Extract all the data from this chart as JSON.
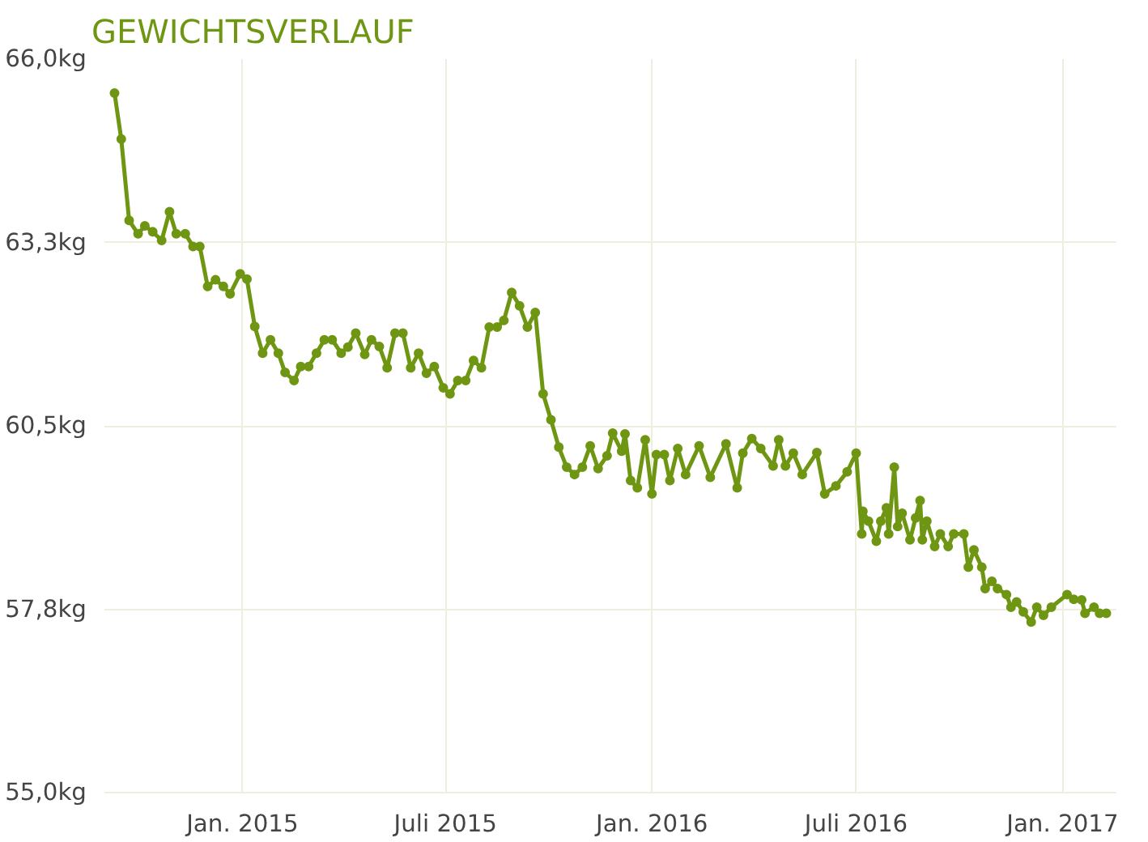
{
  "chart_data": {
    "type": "line",
    "title": "GEWICHTSVERLAUF",
    "x": [
      "2014-09-09",
      "2014-09-15",
      "2014-09-22",
      "2014-09-30",
      "2014-10-06",
      "2014-10-13",
      "2014-10-21",
      "2014-10-28",
      "2014-11-03",
      "2014-11-11",
      "2014-11-18",
      "2014-11-24",
      "2014-12-01",
      "2014-12-08",
      "2014-12-15",
      "2014-12-21",
      "2014-12-30",
      "2015-01-05",
      "2015-01-12",
      "2015-01-19",
      "2015-01-26",
      "2015-02-02",
      "2015-02-08",
      "2015-02-16",
      "2015-02-22",
      "2015-03-01",
      "2015-03-08",
      "2015-03-15",
      "2015-03-22",
      "2015-03-30",
      "2015-04-05",
      "2015-04-12",
      "2015-04-20",
      "2015-04-26",
      "2015-05-03",
      "2015-05-10",
      "2015-05-17",
      "2015-05-24",
      "2015-05-31",
      "2015-06-07",
      "2015-06-14",
      "2015-06-21",
      "2015-06-29",
      "2015-07-05",
      "2015-07-12",
      "2015-07-19",
      "2015-07-26",
      "2015-08-02",
      "2015-08-09",
      "2015-08-16",
      "2015-08-22",
      "2015-08-29",
      "2015-09-05",
      "2015-09-12",
      "2015-09-19",
      "2015-09-26",
      "2015-10-03",
      "2015-10-10",
      "2015-10-17",
      "2015-10-24",
      "2015-10-31",
      "2015-11-07",
      "2015-11-14",
      "2015-11-22",
      "2015-11-27",
      "2015-12-05",
      "2015-12-08",
      "2015-12-13",
      "2015-12-19",
      "2015-12-26",
      "2016-01-01",
      "2016-01-05",
      "2016-01-12",
      "2016-01-17",
      "2016-01-24",
      "2016-01-31",
      "2016-02-12",
      "2016-02-22",
      "2016-03-07",
      "2016-03-17",
      "2016-03-22",
      "2016-03-30",
      "2016-04-07",
      "2016-04-18",
      "2016-04-23",
      "2016-04-29",
      "2016-05-06",
      "2016-05-14",
      "2016-05-27",
      "2016-06-03",
      "2016-06-13",
      "2016-06-23",
      "2016-07-01",
      "2016-07-06",
      "2016-07-07",
      "2016-07-12",
      "2016-07-19",
      "2016-07-23",
      "2016-07-28",
      "2016-07-30",
      "2016-08-04",
      "2016-08-07",
      "2016-08-11",
      "2016-08-18",
      "2016-08-23",
      "2016-08-27",
      "2016-08-29",
      "2016-09-02",
      "2016-09-09",
      "2016-09-14",
      "2016-09-21",
      "2016-09-26",
      "2016-10-05",
      "2016-10-09",
      "2016-10-14",
      "2016-10-21",
      "2016-10-24",
      "2016-10-30",
      "2016-11-04",
      "2016-11-12",
      "2016-11-16",
      "2016-11-21",
      "2016-11-27",
      "2016-12-04",
      "2016-12-09",
      "2016-12-15",
      "2016-12-22",
      "2017-01-05",
      "2017-01-11",
      "2017-01-18",
      "2017-01-21",
      "2017-01-29",
      "2017-02-03",
      "2017-02-09"
    ],
    "series": [
      {
        "color": "#6f9613",
        "values": [
          65.49,
          64.8,
          63.58,
          63.38,
          63.5,
          63.41,
          63.28,
          63.71,
          63.38,
          63.38,
          63.19,
          63.19,
          62.59,
          62.69,
          62.59,
          62.48,
          62.78,
          62.7,
          61.99,
          61.59,
          61.79,
          61.59,
          61.3,
          61.18,
          61.39,
          61.39,
          61.59,
          61.79,
          61.79,
          61.59,
          61.68,
          61.89,
          61.57,
          61.79,
          61.69,
          61.37,
          61.89,
          61.89,
          61.37,
          61.59,
          61.29,
          61.39,
          61.07,
          60.98,
          61.18,
          61.18,
          61.48,
          61.37,
          61.98,
          61.98,
          62.08,
          62.5,
          62.3,
          61.98,
          62.2,
          60.98,
          60.59,
          60.18,
          59.88,
          59.77,
          59.88,
          60.2,
          59.86,
          60.05,
          60.39,
          60.12,
          60.38,
          59.68,
          59.57,
          60.29,
          59.48,
          60.07,
          60.07,
          59.68,
          60.16,
          59.77,
          60.2,
          59.73,
          60.23,
          59.57,
          60.09,
          60.31,
          60.16,
          59.9,
          60.29,
          59.9,
          60.09,
          59.77,
          60.1,
          59.48,
          59.6,
          59.81,
          60.09,
          58.88,
          59.22,
          59.07,
          58.77,
          59.07,
          59.27,
          58.88,
          59.88,
          58.99,
          59.19,
          58.79,
          59.12,
          59.38,
          58.79,
          59.07,
          58.69,
          58.88,
          58.69,
          58.88,
          58.88,
          58.38,
          58.64,
          58.38,
          58.06,
          58.17,
          58.06,
          57.97,
          57.78,
          57.86,
          57.71,
          57.56,
          57.78,
          57.66,
          57.78,
          57.97,
          57.9,
          57.89,
          57.69,
          57.78,
          57.69,
          57.69
        ]
      }
    ],
    "xlim": [
      "2014-08-31",
      "2017-02-18"
    ],
    "xticks": [
      {
        "value": "2015-01-01",
        "label": "Jan. 2015"
      },
      {
        "value": "2015-07-01",
        "label": "Juli 2015"
      },
      {
        "value": "2016-01-01",
        "label": "Jan. 2016"
      },
      {
        "value": "2016-07-01",
        "label": "Juli 2016"
      },
      {
        "value": "2017-01-01",
        "label": "Jan. 2017"
      }
    ],
    "ylim": [
      55,
      66
    ],
    "yticks": [
      {
        "value": 55,
        "label": "55,0kg"
      },
      {
        "value": 57.75,
        "label": "57,8kg"
      },
      {
        "value": 60.5,
        "label": "60,5kg"
      },
      {
        "value": 63.25,
        "label": "63,3kg"
      },
      {
        "value": 66,
        "label": "66,0kg"
      }
    ],
    "grid": true,
    "marker": "circle",
    "line_style": "solid"
  }
}
